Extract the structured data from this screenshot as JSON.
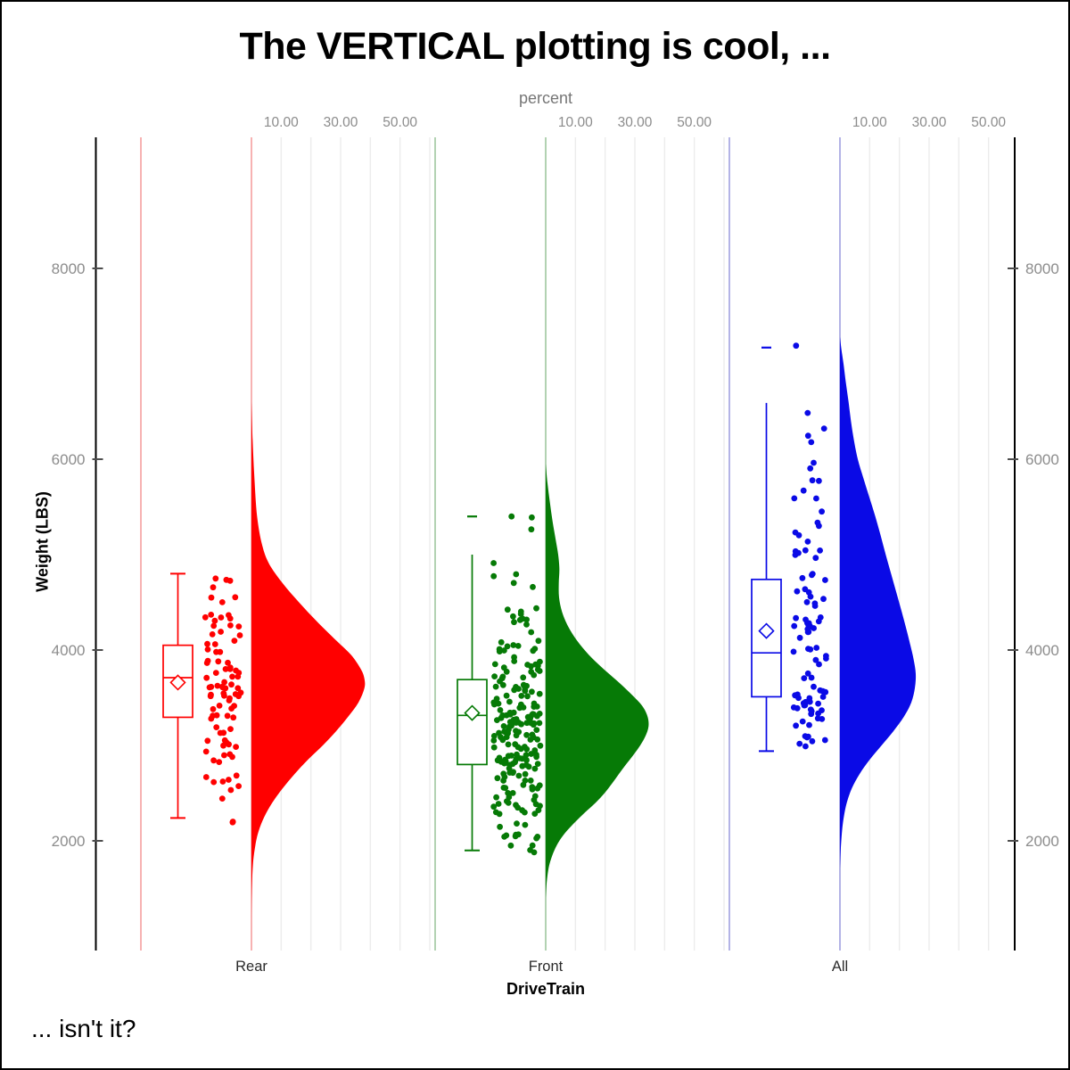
{
  "title": "The VERTICAL plotting is cool, ...",
  "footnote": "... isn't it?",
  "axes": {
    "x2": {
      "label": "percent",
      "tick_labels": [
        "10.00",
        "30.00",
        "50.00"
      ],
      "tick_values": [
        10,
        30,
        50
      ],
      "grid_values": [
        10,
        20,
        30,
        40,
        50,
        60
      ]
    },
    "y": {
      "label": "Weight (LBS)",
      "tick_values": [
        2000,
        4000,
        6000,
        8000
      ],
      "tick_labels": [
        "2000",
        "4000",
        "6000",
        "8000"
      ],
      "mirrored_right": true
    },
    "x": {
      "label": "DriveTrain",
      "categories": [
        "Rear",
        "Front",
        "All"
      ]
    }
  },
  "chart_data": {
    "type": "raincloud (half-violin area + box + jittered scatter), vertical",
    "categories": [
      "Rear",
      "Front",
      "All"
    ],
    "y_axis_label": "Weight (LBS)",
    "density_axis_label": "percent",
    "grid": "vertical light-gray percent gridlines per group",
    "series": [
      {
        "name": "Rear",
        "color": "#FF0000",
        "light_color": "#F6A9A9",
        "n_points": 90,
        "seed": 7,
        "box": {
          "whisker_low": 2240,
          "q1": 3295,
          "median": 3710,
          "mean": 3660,
          "q3": 4050,
          "whisker_high": 4800,
          "far_value": null,
          "top_cap_on_whisker": true
        },
        "point_range": [
          2170,
          4780
        ],
        "extra_points": [
          4750
        ],
        "density_percent": [
          [
            6600,
            0
          ],
          [
            6200,
            0.4
          ],
          [
            5800,
            1
          ],
          [
            5400,
            1.9
          ],
          [
            5100,
            3.6
          ],
          [
            4900,
            6
          ],
          [
            4700,
            10.5
          ],
          [
            4500,
            16
          ],
          [
            4300,
            22
          ],
          [
            4100,
            28.5
          ],
          [
            3950,
            33.5
          ],
          [
            3800,
            36.8
          ],
          [
            3700,
            38
          ],
          [
            3600,
            38
          ],
          [
            3450,
            36
          ],
          [
            3300,
            32.5
          ],
          [
            3150,
            28.5
          ],
          [
            3000,
            24
          ],
          [
            2850,
            19
          ],
          [
            2700,
            14.5
          ],
          [
            2550,
            10.5
          ],
          [
            2400,
            7
          ],
          [
            2250,
            4.3
          ],
          [
            2100,
            2.4
          ],
          [
            1950,
            1.3
          ],
          [
            1750,
            0.5
          ],
          [
            1450,
            0.1
          ],
          [
            1200,
            0
          ]
        ]
      },
      {
        "name": "Front",
        "color": "#067A06",
        "light_color": "#A9CDA9",
        "n_points": 210,
        "seed": 11,
        "box": {
          "whisker_low": 1900,
          "q1": 2800,
          "median": 3315,
          "mean": 3340,
          "q3": 3690,
          "whisker_high": 5000,
          "far_value": 5400,
          "top_cap_on_whisker": false
        },
        "point_range": [
          1720,
          5340
        ],
        "extra_points": [
          5400,
          5390
        ],
        "density_percent": [
          [
            5950,
            0
          ],
          [
            5750,
            0.6
          ],
          [
            5550,
            1.4
          ],
          [
            5350,
            2.3
          ],
          [
            5150,
            3.4
          ],
          [
            5000,
            4.2
          ],
          [
            4850,
            4.6
          ],
          [
            4700,
            4.4
          ],
          [
            4550,
            4.5
          ],
          [
            4400,
            5.5
          ],
          [
            4250,
            7.5
          ],
          [
            4100,
            10.5
          ],
          [
            3950,
            14.5
          ],
          [
            3800,
            19.5
          ],
          [
            3650,
            25
          ],
          [
            3500,
            30
          ],
          [
            3400,
            32.8
          ],
          [
            3300,
            34.3
          ],
          [
            3200,
            34.6
          ],
          [
            3100,
            33.6
          ],
          [
            3000,
            31.8
          ],
          [
            2900,
            29.5
          ],
          [
            2800,
            27
          ],
          [
            2700,
            24.6
          ],
          [
            2600,
            22.3
          ],
          [
            2500,
            19.8
          ],
          [
            2400,
            16.8
          ],
          [
            2300,
            13.3
          ],
          [
            2200,
            10
          ],
          [
            2100,
            7
          ],
          [
            2000,
            4.6
          ],
          [
            1900,
            2.9
          ],
          [
            1800,
            1.7
          ],
          [
            1700,
            0.9
          ],
          [
            1550,
            0.3
          ],
          [
            1400,
            0
          ]
        ]
      },
      {
        "name": "All",
        "color": "#0A0AE6",
        "light_color": "#ABABE3",
        "n_points": 95,
        "seed": 13,
        "box": {
          "whisker_low": 2940,
          "q1": 3510,
          "median": 3970,
          "mean": 4200,
          "q3": 4740,
          "whisker_high": 6590,
          "far_value": 7170,
          "top_cap_on_whisker": false
        },
        "point_range": [
          2950,
          6600
        ],
        "extra_points": [
          7190
        ],
        "density_percent": [
          [
            7280,
            0
          ],
          [
            7150,
            0.5
          ],
          [
            7000,
            1.2
          ],
          [
            6800,
            2
          ],
          [
            6600,
            2.9
          ],
          [
            6400,
            3.7
          ],
          [
            6200,
            4.7
          ],
          [
            6000,
            6
          ],
          [
            5800,
            7.9
          ],
          [
            5600,
            9.9
          ],
          [
            5400,
            11.9
          ],
          [
            5200,
            13.7
          ],
          [
            5000,
            15.4
          ],
          [
            4800,
            17.2
          ],
          [
            4600,
            19
          ],
          [
            4400,
            20.8
          ],
          [
            4200,
            22.5
          ],
          [
            4050,
            23.7
          ],
          [
            3900,
            24.8
          ],
          [
            3750,
            25.5
          ],
          [
            3600,
            25.2
          ],
          [
            3450,
            24
          ],
          [
            3300,
            21.5
          ],
          [
            3150,
            18
          ],
          [
            3000,
            14
          ],
          [
            2850,
            10
          ],
          [
            2700,
            6.6
          ],
          [
            2550,
            4
          ],
          [
            2400,
            2.3
          ],
          [
            2250,
            1.3
          ],
          [
            2100,
            0.7
          ],
          [
            1900,
            0.25
          ],
          [
            1700,
            0
          ]
        ]
      }
    ],
    "colors": {
      "grid": "#ECECEC",
      "axis": "#000000",
      "tick_mark": "#4D4D4D",
      "tick_label": "#8C8C8C",
      "category_label": "#2B2B2B"
    }
  }
}
